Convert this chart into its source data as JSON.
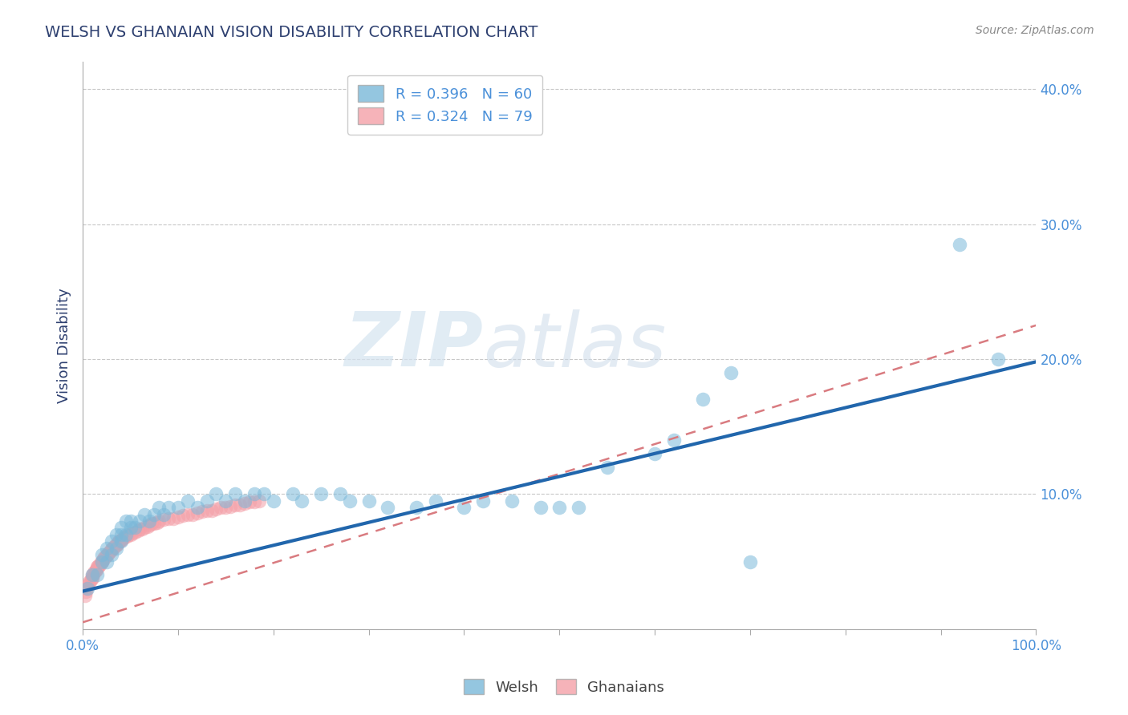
{
  "title": "WELSH VS GHANAIAN VISION DISABILITY CORRELATION CHART",
  "source": "Source: ZipAtlas.com",
  "ylabel": "Vision Disability",
  "xlim": [
    0,
    1.0
  ],
  "ylim": [
    0,
    0.42
  ],
  "xticks": [
    0.0,
    0.1,
    0.2,
    0.3,
    0.4,
    0.5,
    0.6,
    0.7,
    0.8,
    0.9,
    1.0
  ],
  "yticks": [
    0.0,
    0.1,
    0.2,
    0.3,
    0.4
  ],
  "xtick_labels": [
    "0.0%",
    "",
    "",
    "",
    "",
    "",
    "",
    "",
    "",
    "",
    "100.0%"
  ],
  "welsh_R": 0.396,
  "welsh_N": 60,
  "ghanaian_R": 0.324,
  "ghanaian_N": 79,
  "welsh_color": "#7ab8d9",
  "ghanaian_color": "#f4a0a8",
  "welsh_line_color": "#2166ac",
  "ghanaian_line_color": "#d97b80",
  "background_color": "#ffffff",
  "grid_color": "#c8c8c8",
  "title_color": "#2e4070",
  "label_color": "#4a90d9",
  "axis_color": "#aaaaaa",
  "watermark_color": "#d5e4f0",
  "welsh_x": [
    0.005,
    0.01,
    0.015,
    0.02,
    0.02,
    0.025,
    0.025,
    0.03,
    0.03,
    0.035,
    0.035,
    0.04,
    0.04,
    0.04,
    0.045,
    0.045,
    0.05,
    0.05,
    0.055,
    0.06,
    0.065,
    0.07,
    0.075,
    0.08,
    0.085,
    0.09,
    0.1,
    0.11,
    0.12,
    0.13,
    0.14,
    0.15,
    0.16,
    0.17,
    0.18,
    0.19,
    0.2,
    0.22,
    0.23,
    0.25,
    0.27,
    0.28,
    0.3,
    0.32,
    0.35,
    0.37,
    0.4,
    0.42,
    0.45,
    0.48,
    0.5,
    0.52,
    0.55,
    0.6,
    0.62,
    0.65,
    0.68,
    0.7,
    0.92,
    0.96
  ],
  "welsh_y": [
    0.03,
    0.04,
    0.04,
    0.05,
    0.055,
    0.05,
    0.06,
    0.055,
    0.065,
    0.06,
    0.07,
    0.065,
    0.07,
    0.075,
    0.07,
    0.08,
    0.075,
    0.08,
    0.075,
    0.08,
    0.085,
    0.08,
    0.085,
    0.09,
    0.085,
    0.09,
    0.09,
    0.095,
    0.09,
    0.095,
    0.1,
    0.095,
    0.1,
    0.095,
    0.1,
    0.1,
    0.095,
    0.1,
    0.095,
    0.1,
    0.1,
    0.095,
    0.095,
    0.09,
    0.09,
    0.095,
    0.09,
    0.095,
    0.095,
    0.09,
    0.09,
    0.09,
    0.12,
    0.13,
    0.14,
    0.17,
    0.19,
    0.05,
    0.285,
    0.2
  ],
  "ghanaian_x": [
    0.002,
    0.003,
    0.004,
    0.005,
    0.006,
    0.007,
    0.008,
    0.009,
    0.01,
    0.01,
    0.011,
    0.012,
    0.013,
    0.014,
    0.015,
    0.015,
    0.016,
    0.017,
    0.018,
    0.019,
    0.02,
    0.021,
    0.022,
    0.023,
    0.024,
    0.025,
    0.026,
    0.027,
    0.028,
    0.029,
    0.03,
    0.031,
    0.032,
    0.033,
    0.034,
    0.035,
    0.036,
    0.037,
    0.038,
    0.039,
    0.04,
    0.042,
    0.044,
    0.046,
    0.048,
    0.05,
    0.052,
    0.055,
    0.058,
    0.06,
    0.062,
    0.065,
    0.068,
    0.07,
    0.072,
    0.075,
    0.078,
    0.08,
    0.085,
    0.09,
    0.095,
    0.1,
    0.105,
    0.11,
    0.115,
    0.12,
    0.125,
    0.13,
    0.135,
    0.14,
    0.145,
    0.15,
    0.155,
    0.16,
    0.165,
    0.17,
    0.175,
    0.18,
    0.185
  ],
  "ghanaian_y": [
    0.025,
    0.028,
    0.03,
    0.032,
    0.033,
    0.035,
    0.036,
    0.037,
    0.038,
    0.04,
    0.04,
    0.042,
    0.043,
    0.044,
    0.045,
    0.046,
    0.047,
    0.047,
    0.048,
    0.05,
    0.05,
    0.051,
    0.052,
    0.053,
    0.054,
    0.055,
    0.055,
    0.056,
    0.057,
    0.058,
    0.059,
    0.06,
    0.06,
    0.061,
    0.062,
    0.062,
    0.063,
    0.064,
    0.065,
    0.065,
    0.066,
    0.067,
    0.068,
    0.069,
    0.07,
    0.07,
    0.071,
    0.072,
    0.073,
    0.074,
    0.074,
    0.075,
    0.076,
    0.077,
    0.078,
    0.078,
    0.079,
    0.08,
    0.081,
    0.082,
    0.082,
    0.083,
    0.084,
    0.085,
    0.085,
    0.086,
    0.087,
    0.088,
    0.088,
    0.089,
    0.09,
    0.09,
    0.091,
    0.092,
    0.092,
    0.093,
    0.094,
    0.094,
    0.095
  ],
  "welsh_line_x0": 0.0,
  "welsh_line_y0": 0.028,
  "welsh_line_x1": 1.0,
  "welsh_line_y1": 0.198,
  "ghanaian_line_x0": 0.0,
  "ghanaian_line_y0": 0.005,
  "ghanaian_line_x1": 1.0,
  "ghanaian_line_y1": 0.225
}
